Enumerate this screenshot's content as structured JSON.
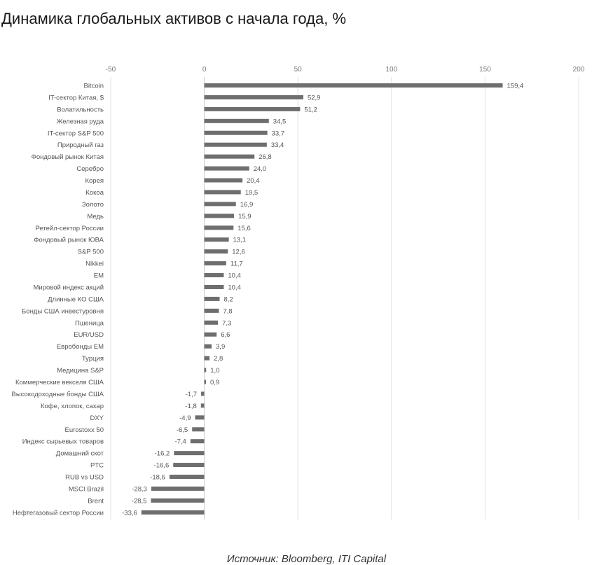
{
  "title": "Динамика глобальных активов с начала года, %",
  "source": "Источник: Bloomberg, ITI Capital",
  "chart_data": {
    "type": "bar",
    "orientation": "horizontal",
    "title": "Динамика глобальных активов с начала года, %",
    "xlabel": "",
    "ylabel": "",
    "xlim": [
      -50,
      200
    ],
    "xticks": [
      -50,
      0,
      50,
      100,
      150,
      200
    ],
    "xtick_labels": [
      "-50",
      "0",
      "50",
      "100",
      "150",
      "200"
    ],
    "grid": "vertical",
    "legend": "none",
    "bar_color": "#6e6e6e",
    "categories": [
      "Bitcoin",
      "IT-сектор Китая, $",
      "Волатильность",
      "Железная руда",
      "IT-сектор S&P 500",
      "Природный газ",
      "Фондовый рынок Китая",
      "Серебро",
      "Корея",
      "Кокоа",
      "Золото",
      "Медь",
      "Ретейл-сектор России",
      "Фондовый рынок ЮВА",
      "S&P 500",
      "Nikkei",
      "EM",
      "Мировой индекс акций",
      "Длинные КО США",
      "Бонды США инвестуровня",
      "Пшеница",
      "EUR/USD",
      "Евробонды EM",
      "Турция",
      "Медицина S&P",
      "Коммерческие векселя США",
      "Высокодоходные бонды США",
      "Кофе, хлопок, сахар",
      "DXY",
      "Eurostoxx 50",
      "Индекс сырьевых товаров",
      "Домашний скот",
      "PTC",
      "RUB vs USD",
      "MSCI Brazil",
      "Brent",
      "Нефтегазовый сектор России"
    ],
    "values": [
      159.4,
      52.9,
      51.2,
      34.5,
      33.7,
      33.4,
      26.8,
      24.0,
      20.4,
      19.5,
      16.9,
      15.9,
      15.6,
      13.1,
      12.6,
      11.7,
      10.4,
      10.4,
      8.2,
      7.8,
      7.3,
      6.6,
      3.9,
      2.8,
      1.0,
      0.9,
      -1.7,
      -1.8,
      -4.9,
      -6.5,
      -7.4,
      -16.2,
      -16.6,
      -18.6,
      -28.3,
      -28.5,
      -33.6
    ],
    "data_labels": [
      "159,4",
      "52,9",
      "51,2",
      "34,5",
      "33,7",
      "33,4",
      "26,8",
      "24,0",
      "20,4",
      "19,5",
      "16,9",
      "15,9",
      "15,6",
      "13,1",
      "12,6",
      "11,7",
      "10,4",
      "10,4",
      "8,2",
      "7,8",
      "7,3",
      "6,6",
      "3,9",
      "2,8",
      "1,0",
      "0,9",
      "-1,7",
      "-1,8",
      "-4,9",
      "-6,5",
      "-7,4",
      "-16,2",
      "-16,6",
      "-18,6",
      "-28,3",
      "-28,5",
      "-33,6"
    ]
  }
}
